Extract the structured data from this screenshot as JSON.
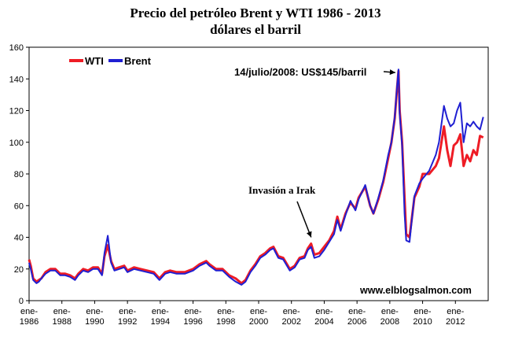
{
  "chart_data": {
    "type": "line",
    "title": "Precio del petróleo Brent y WTI 1986 - 2013",
    "subtitle": "dólares el barril",
    "xlabel": "",
    "ylabel": "",
    "ylim": [
      0,
      160
    ],
    "xlim": [
      1986.0,
      2014.0
    ],
    "y_ticks": [
      0,
      20,
      40,
      60,
      80,
      100,
      120,
      140,
      160
    ],
    "x_ticks": [
      {
        "year": 1986,
        "label_top": "ene-",
        "label_bottom": "1986"
      },
      {
        "year": 1988,
        "label_top": "ene-",
        "label_bottom": "1988"
      },
      {
        "year": 1990,
        "label_top": "ene-",
        "label_bottom": "1990"
      },
      {
        "year": 1992,
        "label_top": "ene-",
        "label_bottom": "1992"
      },
      {
        "year": 1994,
        "label_top": "ene-",
        "label_bottom": "1994"
      },
      {
        "year": 1996,
        "label_top": "ene-",
        "label_bottom": "1996"
      },
      {
        "year": 1998,
        "label_top": "ene-",
        "label_bottom": "1998"
      },
      {
        "year": 2000,
        "label_top": "ene-",
        "label_bottom": "2000"
      },
      {
        "year": 2002,
        "label_top": "ene-",
        "label_bottom": "2002"
      },
      {
        "year": 2004,
        "label_top": "ene-",
        "label_bottom": "2004"
      },
      {
        "year": 2006,
        "label_top": "ene-",
        "label_bottom": "2006"
      },
      {
        "year": 2008,
        "label_top": "ene-",
        "label_bottom": "2008"
      },
      {
        "year": 2010,
        "label_top": "ene-",
        "label_bottom": "2010"
      },
      {
        "year": 2012,
        "label_top": "ene-",
        "label_bottom": "2012"
      }
    ],
    "grid": false,
    "legend_position": "top-left",
    "series": [
      {
        "name": "WTI",
        "color": "#ee1c25",
        "x": [
          1986.0,
          1986.1,
          1986.25,
          1986.45,
          1986.6,
          1986.75,
          1987.0,
          1987.3,
          1987.6,
          1987.9,
          1988.2,
          1988.5,
          1988.8,
          1989.0,
          1989.3,
          1989.6,
          1989.9,
          1990.2,
          1990.45,
          1990.6,
          1990.8,
          1991.0,
          1991.2,
          1991.5,
          1991.8,
          1992.0,
          1992.4,
          1992.8,
          1993.2,
          1993.6,
          1993.95,
          1994.3,
          1994.6,
          1995.0,
          1995.5,
          1996.0,
          1996.4,
          1996.8,
          1997.0,
          1997.4,
          1997.8,
          1998.2,
          1998.6,
          1998.95,
          1999.2,
          1999.5,
          1999.8,
          2000.1,
          2000.4,
          2000.7,
          2000.9,
          2001.2,
          2001.5,
          2001.9,
          2002.2,
          2002.5,
          2002.8,
          2003.0,
          2003.2,
          2003.4,
          2003.7,
          2004.0,
          2004.3,
          2004.6,
          2004.8,
          2005.0,
          2005.3,
          2005.6,
          2005.9,
          2006.1,
          2006.5,
          2006.8,
          2007.0,
          2007.3,
          2007.6,
          2007.9,
          2008.1,
          2008.3,
          2008.45,
          2008.53,
          2008.6,
          2008.75,
          2008.9,
          2009.0,
          2009.2,
          2009.5,
          2009.8,
          2010.0,
          2010.4,
          2010.8,
          2011.0,
          2011.3,
          2011.5,
          2011.7,
          2011.9,
          2012.1,
          2012.3,
          2012.5,
          2012.7,
          2012.9,
          2013.1,
          2013.3,
          2013.5,
          2013.7
        ],
        "values": [
          26,
          22,
          14,
          12,
          13,
          14,
          18,
          20,
          20,
          17,
          17,
          16,
          14,
          17,
          20,
          19,
          21,
          21,
          17,
          28,
          35,
          25,
          20,
          21,
          22,
          19,
          21,
          20,
          19,
          18,
          14,
          18,
          19,
          18,
          18,
          20,
          23,
          25,
          23,
          20,
          20,
          16,
          14,
          11,
          13,
          19,
          23,
          28,
          30,
          33,
          34,
          28,
          27,
          20,
          22,
          27,
          28,
          33,
          36,
          29,
          30,
          34,
          38,
          44,
          53,
          45,
          55,
          62,
          58,
          65,
          72,
          60,
          55,
          64,
          75,
          90,
          100,
          115,
          135,
          145,
          120,
          100,
          65,
          42,
          40,
          65,
          72,
          80,
          80,
          85,
          90,
          110,
          95,
          85,
          98,
          100,
          105,
          85,
          92,
          88,
          95,
          92,
          104,
          103
        ]
      },
      {
        "name": "Brent",
        "color": "#1f1fd2",
        "x": [
          1986.0,
          1986.1,
          1986.25,
          1986.45,
          1986.6,
          1986.75,
          1987.0,
          1987.3,
          1987.6,
          1987.9,
          1988.2,
          1988.5,
          1988.8,
          1989.0,
          1989.3,
          1989.6,
          1989.9,
          1990.2,
          1990.45,
          1990.6,
          1990.8,
          1991.0,
          1991.2,
          1991.5,
          1991.8,
          1992.0,
          1992.4,
          1992.8,
          1993.2,
          1993.6,
          1993.95,
          1994.3,
          1994.6,
          1995.0,
          1995.5,
          1996.0,
          1996.4,
          1996.8,
          1997.0,
          1997.4,
          1997.8,
          1998.2,
          1998.6,
          1998.95,
          1999.2,
          1999.5,
          1999.8,
          2000.1,
          2000.4,
          2000.7,
          2000.9,
          2001.2,
          2001.5,
          2001.9,
          2002.2,
          2002.5,
          2002.8,
          2003.0,
          2003.2,
          2003.4,
          2003.7,
          2004.0,
          2004.3,
          2004.6,
          2004.8,
          2005.0,
          2005.3,
          2005.6,
          2005.9,
          2006.1,
          2006.5,
          2006.8,
          2007.0,
          2007.3,
          2007.6,
          2007.9,
          2008.1,
          2008.3,
          2008.45,
          2008.53,
          2008.6,
          2008.75,
          2008.9,
          2009.0,
          2009.2,
          2009.5,
          2009.8,
          2010.0,
          2010.4,
          2010.8,
          2011.0,
          2011.3,
          2011.5,
          2011.7,
          2011.9,
          2012.1,
          2012.3,
          2012.5,
          2012.7,
          2012.9,
          2013.1,
          2013.3,
          2013.5,
          2013.7
        ],
        "values": [
          24,
          20,
          13,
          11,
          12,
          14,
          17,
          19,
          19,
          16,
          16,
          15,
          13,
          16,
          19,
          18,
          20,
          20,
          16,
          30,
          41,
          24,
          19,
          20,
          21,
          18,
          20,
          19,
          18,
          17,
          13,
          17,
          18,
          17,
          17,
          19,
          22,
          24,
          22,
          19,
          19,
          15,
          12,
          10,
          12,
          18,
          22,
          27,
          29,
          32,
          33,
          27,
          26,
          19,
          21,
          26,
          27,
          32,
          34,
          27,
          28,
          32,
          37,
          42,
          51,
          44,
          54,
          63,
          57,
          64,
          73,
          60,
          55,
          65,
          76,
          92,
          100,
          116,
          136,
          146,
          118,
          98,
          55,
          38,
          37,
          66,
          74,
          77,
          82,
          92,
          100,
          123,
          115,
          110,
          112,
          120,
          125,
          100,
          112,
          110,
          113,
          110,
          108,
          116
        ]
      }
    ],
    "annotations": [
      {
        "text": "14/julio/2008: US$145/barril",
        "x": 2008.53,
        "y": 145
      },
      {
        "text": "Invasión a Irak",
        "x": 2003.2,
        "y": 38
      },
      {
        "text": "www.elblogsalmon.com"
      }
    ]
  }
}
